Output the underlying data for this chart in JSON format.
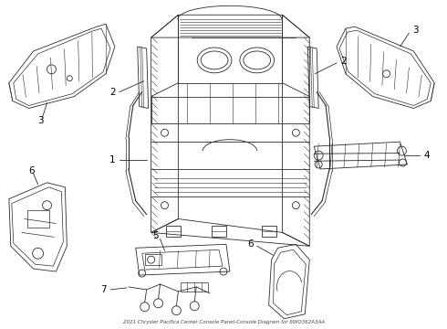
{
  "title": "2021 Chrysler Pacifica Center Console Panel-Console Diagram for 6WQ362A3AA",
  "background_color": "#ffffff",
  "line_color": "#2a2a2a",
  "label_color": "#000000",
  "fig_w": 4.9,
  "fig_h": 3.6,
  "dpi": 100
}
